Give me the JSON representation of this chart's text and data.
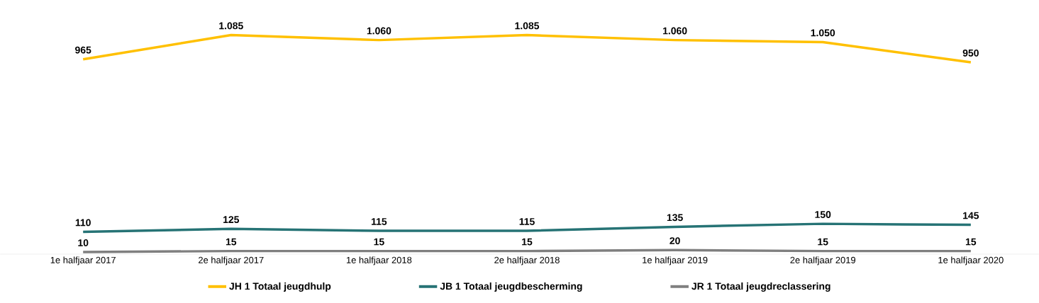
{
  "chart_data": {
    "type": "line",
    "categories": [
      "1e halfjaar 2017",
      "2e halfjaar 2017",
      "1e halfjaar 2018",
      "2e halfjaar 2018",
      "1e halfjaar 2019",
      "2e halfjaar 2019",
      "1e halfjaar 2020"
    ],
    "series": [
      {
        "name": "JH 1 Totaal jeugdhulp",
        "color": "#ffc000",
        "values": [
          965,
          1085,
          1060,
          1085,
          1060,
          1050,
          950
        ],
        "value_labels": [
          "965",
          "1.085",
          "1.060",
          "1.085",
          "1.060",
          "1.050",
          "950"
        ]
      },
      {
        "name": "JB 1 Totaal jeugdbescherming",
        "color": "#267375",
        "values": [
          110,
          125,
          115,
          115,
          135,
          150,
          145
        ],
        "value_labels": [
          "110",
          "125",
          "115",
          "115",
          "135",
          "150",
          "145"
        ]
      },
      {
        "name": "JR 1 Totaal jeugdreclassering",
        "color": "#7f7f7f",
        "values": [
          10,
          15,
          15,
          15,
          20,
          15,
          15
        ],
        "value_labels": [
          "10",
          "15",
          "15",
          "15",
          "20",
          "15",
          "15"
        ]
      }
    ],
    "tick_labels": "x",
    "legend": "bottom",
    "marker": "none",
    "line_style": "solid",
    "grid": false
  }
}
